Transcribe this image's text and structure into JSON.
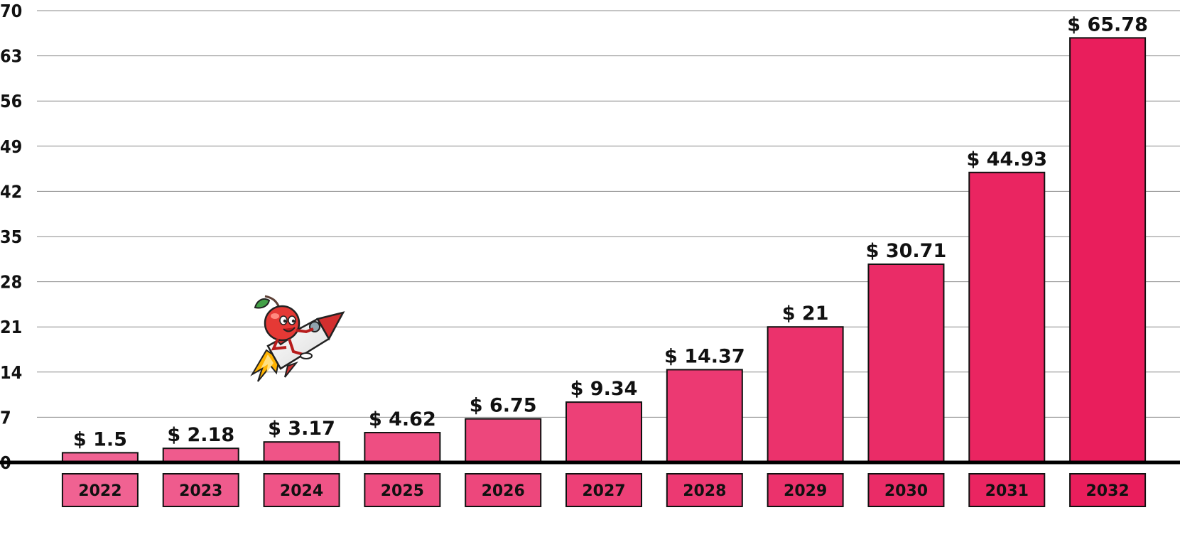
{
  "chart_data": {
    "type": "bar",
    "categories": [
      "2022",
      "2023",
      "2024",
      "2025",
      "2026",
      "2027",
      "2028",
      "2029",
      "2030",
      "2031",
      "2032"
    ],
    "values": [
      1.5,
      2.18,
      3.17,
      4.62,
      6.75,
      9.34,
      14.37,
      21,
      30.71,
      44.93,
      65.78
    ],
    "value_labels": [
      "$ 1.5",
      "$ 2.18",
      "$ 3.17",
      "$ 4.62",
      "$ 6.75",
      "$ 9.34",
      "$ 14.37",
      "$ 21",
      "$ 30.71",
      "$ 44.93",
      "$ 65.78"
    ],
    "yticks": [
      0,
      7,
      14,
      21,
      28,
      35,
      42,
      49,
      56,
      63,
      70
    ],
    "ylim": [
      0,
      70
    ],
    "grid": true,
    "legend": "none",
    "title": "",
    "xlabel": "",
    "ylabel": "",
    "colors": {
      "bar_start": "#f06292",
      "bar_end": "#e91e5c",
      "axis": "#000000",
      "grid": "#8a8a8a"
    }
  },
  "decoration": {
    "icon": "cherry-rocket-icon"
  }
}
